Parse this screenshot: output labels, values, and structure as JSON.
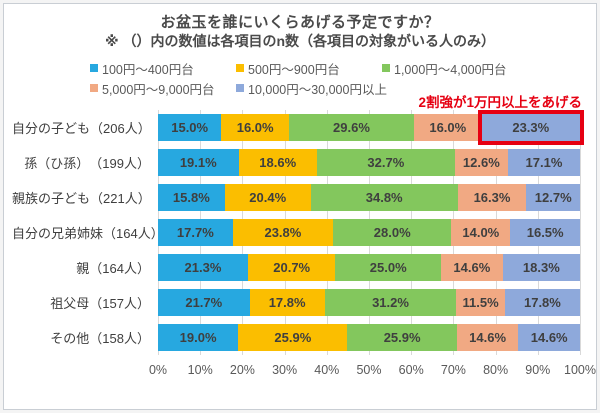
{
  "title": {
    "line1": "お盆玉を誰にいくらあげる予定ですか？",
    "line2": "※ （）内の数値は各項目のn数（各項目の対象がいる人のみ）"
  },
  "annotation": {
    "text": "2割強が1万円以上をあげる",
    "color": "#e60012"
  },
  "colors": {
    "highlight_box": "#e60012",
    "grid_line": "#d9d9d9",
    "frame_border": "#c9ced4",
    "label_text": "#3f3f3f",
    "axis_text": "#595959"
  },
  "chart_data": {
    "type": "bar",
    "orientation": "horizontal-stacked",
    "unit": "%",
    "xlim": [
      0,
      100
    ],
    "grid": true,
    "legend_position": "top",
    "x_ticks": [
      "0%",
      "10%",
      "20%",
      "30%",
      "40%",
      "50%",
      "60%",
      "70%",
      "80%",
      "90%",
      "100%"
    ],
    "categories": [
      "自分の子ども（206人）",
      "孫（ひ孫）　（199人）",
      "親族の子ども（221人）",
      "自分の兄弟姉妹（164人）",
      "親（164人）",
      "祖父母（157人）",
      "その他（158人）"
    ],
    "series": [
      {
        "name": "100円〜400円台",
        "color": "#27a8e0",
        "values": [
          15.0,
          19.1,
          15.8,
          17.7,
          21.3,
          21.7,
          19.0
        ]
      },
      {
        "name": "500円〜900円台",
        "color": "#fbbe00",
        "values": [
          16.0,
          18.6,
          20.4,
          23.8,
          20.7,
          17.8,
          25.9
        ]
      },
      {
        "name": "1,000円〜4,000円台",
        "color": "#83c75d",
        "values": [
          29.6,
          32.7,
          34.8,
          28.0,
          25.0,
          31.2,
          25.9
        ]
      },
      {
        "name": "5,000円〜9,000円台",
        "color": "#f1a983",
        "values": [
          16.0,
          12.6,
          16.3,
          14.0,
          14.6,
          11.5,
          14.6
        ]
      },
      {
        "name": "10,000円〜30,000円以上",
        "color": "#8ea9db",
        "values": [
          23.3,
          17.1,
          12.7,
          16.5,
          18.3,
          17.8,
          14.6
        ]
      }
    ],
    "highlight": {
      "row_index": 0,
      "series_index": 4
    }
  }
}
